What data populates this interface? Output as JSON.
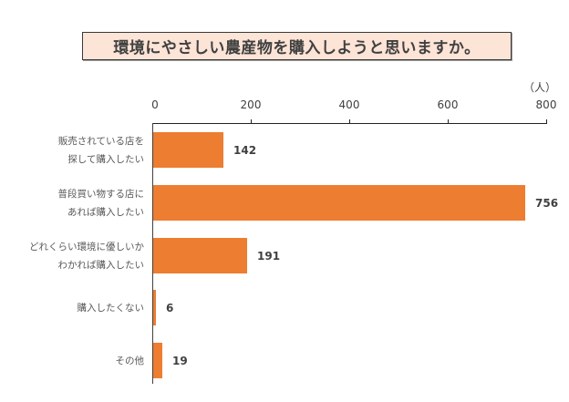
{
  "chart_data": {
    "type": "bar",
    "orientation": "horizontal",
    "title": "環境にやさしい農産物を購入しようと思いますか。",
    "xlabel": "",
    "ylabel": "",
    "unit": "（人）",
    "xlim": [
      0,
      800
    ],
    "x_ticks": [
      "0",
      "200",
      "400",
      "600",
      "800"
    ],
    "grid": false,
    "legend": null,
    "categories": [
      "販売されている店を探して購入したい",
      "普段買い物する店にあれば購入したい",
      "どれくらい環境に優しいかわかれば購入したい",
      "購入したくない",
      "その他"
    ],
    "values": [
      142,
      756,
      191,
      6,
      19
    ],
    "bar_color": "#ed7d31"
  },
  "title": "環境にやさしい農産物を購入しようと思いますか。",
  "unit": "（人）",
  "ticks": [
    "0",
    "200",
    "400",
    "600",
    "800"
  ],
  "bars": [
    {
      "line1": "販売されている店を",
      "line2": "探して購入したい",
      "value": "142"
    },
    {
      "line1": "普段買い物する店に",
      "line2": "あれば購入したい",
      "value": "756"
    },
    {
      "line1": "どれくらい環境に優しいか",
      "line2": "わかれば購入したい",
      "value": "191"
    },
    {
      "line1": "購入したくない",
      "line2": "",
      "value": "6"
    },
    {
      "line1": "その他",
      "line2": "",
      "value": "19"
    }
  ],
  "colors": {
    "bar": "#ed7d31",
    "title_fill": "#fce4d6"
  }
}
